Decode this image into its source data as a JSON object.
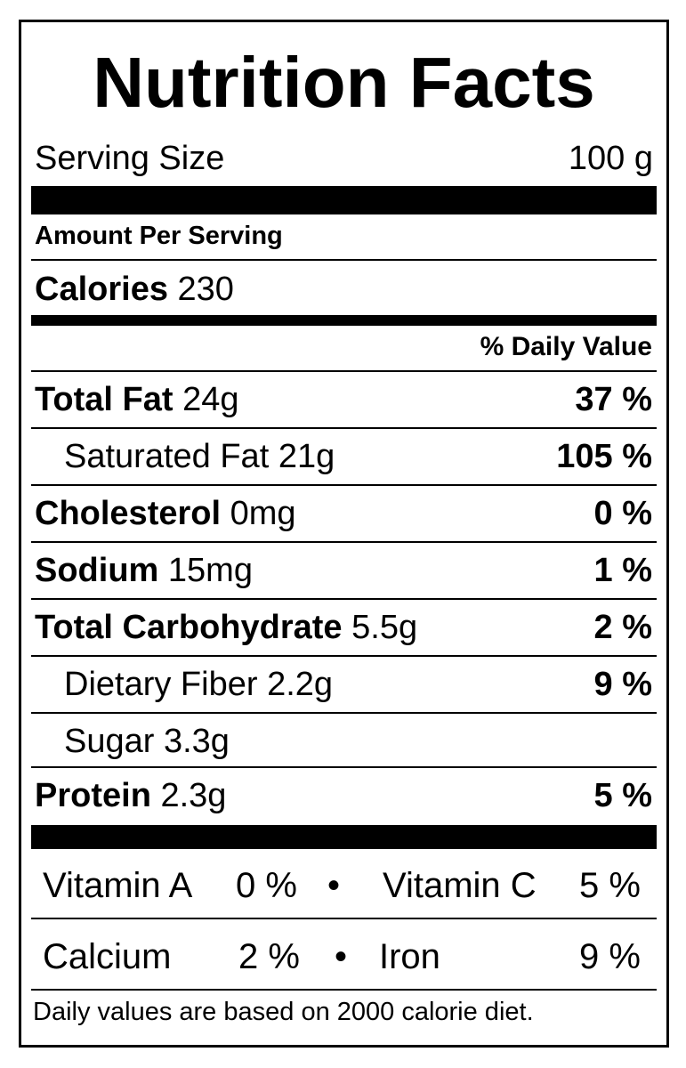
{
  "title": "Nutrition Facts",
  "serving": {
    "label": "Serving Size",
    "value": "100 g"
  },
  "amount_per_serving": "Amount Per Serving",
  "calories": {
    "label": "Calories",
    "value": "230"
  },
  "daily_value_header": "% Daily Value",
  "nutrients": [
    {
      "name": "Total Fat",
      "amount": "24g",
      "dv": "37 %"
    },
    {
      "name": "Saturated Fat",
      "amount": "21g",
      "dv": "105 %"
    },
    {
      "name": "Cholesterol",
      "amount": "0mg",
      "dv": "0 %"
    },
    {
      "name": "Sodium",
      "amount": "15mg",
      "dv": "1 %"
    },
    {
      "name": "Total Carbohydrate",
      "amount": "5.5g",
      "dv": "2 %"
    },
    {
      "name": "Dietary Fiber",
      "amount": "2.2g",
      "dv": "9 %"
    },
    {
      "name": "Sugar",
      "amount": "3.3g",
      "dv": ""
    },
    {
      "name": "Protein",
      "amount": "2.3g",
      "dv": "5 %"
    }
  ],
  "vitamins": [
    {
      "name": "Vitamin A",
      "dv": "0 %"
    },
    {
      "name": "Vitamin C",
      "dv": "5 %"
    },
    {
      "name": "Calcium",
      "dv": "2 %"
    },
    {
      "name": "Iron",
      "dv": "9 %"
    }
  ],
  "separator": "•",
  "footnote": "Daily values are based on 2000 calorie diet."
}
